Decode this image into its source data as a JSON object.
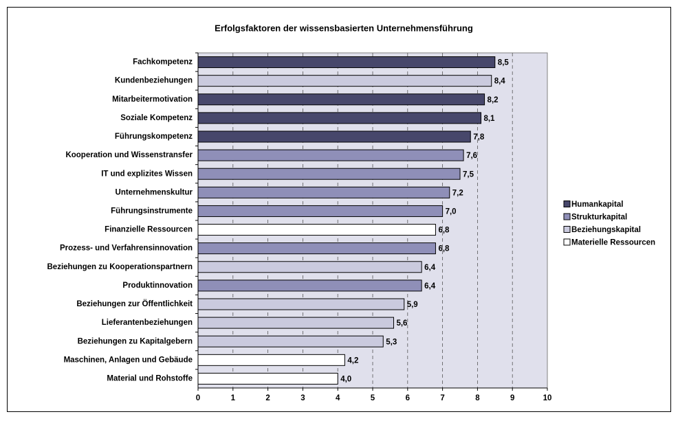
{
  "chart_data": {
    "type": "bar",
    "orientation": "horizontal",
    "title": "Erfolgsfaktoren der wissensbasierten Unternehmensführung",
    "categories": [
      "Fachkompetenz",
      "Kundenbeziehungen",
      "Mitarbeitermotivation",
      "Soziale Kompetenz",
      "Führungskompetenz",
      "Kooperation und Wissenstransfer",
      "IT und explizites Wissen",
      "Unternehmenskultur",
      "Führungsinstrumente",
      "Finanzielle Ressourcen",
      "Prozess- und Verfahrensinnovation",
      "Beziehungen zu Kooperationspartnern",
      "Produktinnovation",
      "Beziehungen zur Öffentlichkeit",
      "Lieferantenbeziehungen",
      "Beziehungen zu Kapitalgebern",
      "Maschinen, Anlagen und Gebäude",
      "Material und Rohstoffe"
    ],
    "series": [
      {
        "name": "Humankapital",
        "color": "#47476b",
        "values": [
          8.5,
          null,
          8.2,
          8.1,
          7.8,
          null,
          null,
          null,
          null,
          null,
          null,
          null,
          null,
          null,
          null,
          null,
          null,
          null
        ],
        "value_labels": [
          "8,5",
          null,
          "8,2",
          "8,1",
          "7,8",
          null,
          null,
          null,
          null,
          null,
          null,
          null,
          null,
          null,
          null,
          null,
          null,
          null
        ]
      },
      {
        "name": "Strukturkapital",
        "color": "#8f8fb8",
        "values": [
          null,
          null,
          null,
          null,
          null,
          7.6,
          7.5,
          7.2,
          7.0,
          null,
          6.8,
          null,
          6.4,
          null,
          null,
          null,
          null,
          null
        ],
        "value_labels": [
          null,
          null,
          null,
          null,
          null,
          "7,6",
          "7,5",
          "7,2",
          "7,0",
          null,
          "6,8",
          null,
          "6,4",
          null,
          null,
          null,
          null,
          null
        ]
      },
      {
        "name": "Beziehungskapital",
        "color": "#cacade",
        "values": [
          null,
          8.4,
          null,
          null,
          null,
          null,
          null,
          null,
          null,
          null,
          null,
          6.4,
          null,
          5.9,
          5.6,
          5.3,
          null,
          null
        ],
        "value_labels": [
          null,
          "8,4",
          null,
          null,
          null,
          null,
          null,
          null,
          null,
          null,
          null,
          "6,4",
          null,
          "5,9",
          "5,6",
          "5,3",
          null,
          null
        ]
      },
      {
        "name": "Materielle Ressourcen",
        "color": "#ffffff",
        "values": [
          null,
          null,
          null,
          null,
          null,
          null,
          null,
          null,
          null,
          6.8,
          null,
          null,
          null,
          null,
          null,
          null,
          4.2,
          4.0
        ],
        "value_labels": [
          null,
          null,
          null,
          null,
          null,
          null,
          null,
          null,
          null,
          "6,8",
          null,
          null,
          null,
          null,
          null,
          null,
          "4,2",
          "4,0"
        ]
      }
    ],
    "xlim": [
      0,
      10
    ],
    "xticks": [
      0,
      1,
      2,
      3,
      4,
      5,
      6,
      7,
      8,
      9,
      10
    ],
    "grid": true,
    "legend": "right"
  }
}
